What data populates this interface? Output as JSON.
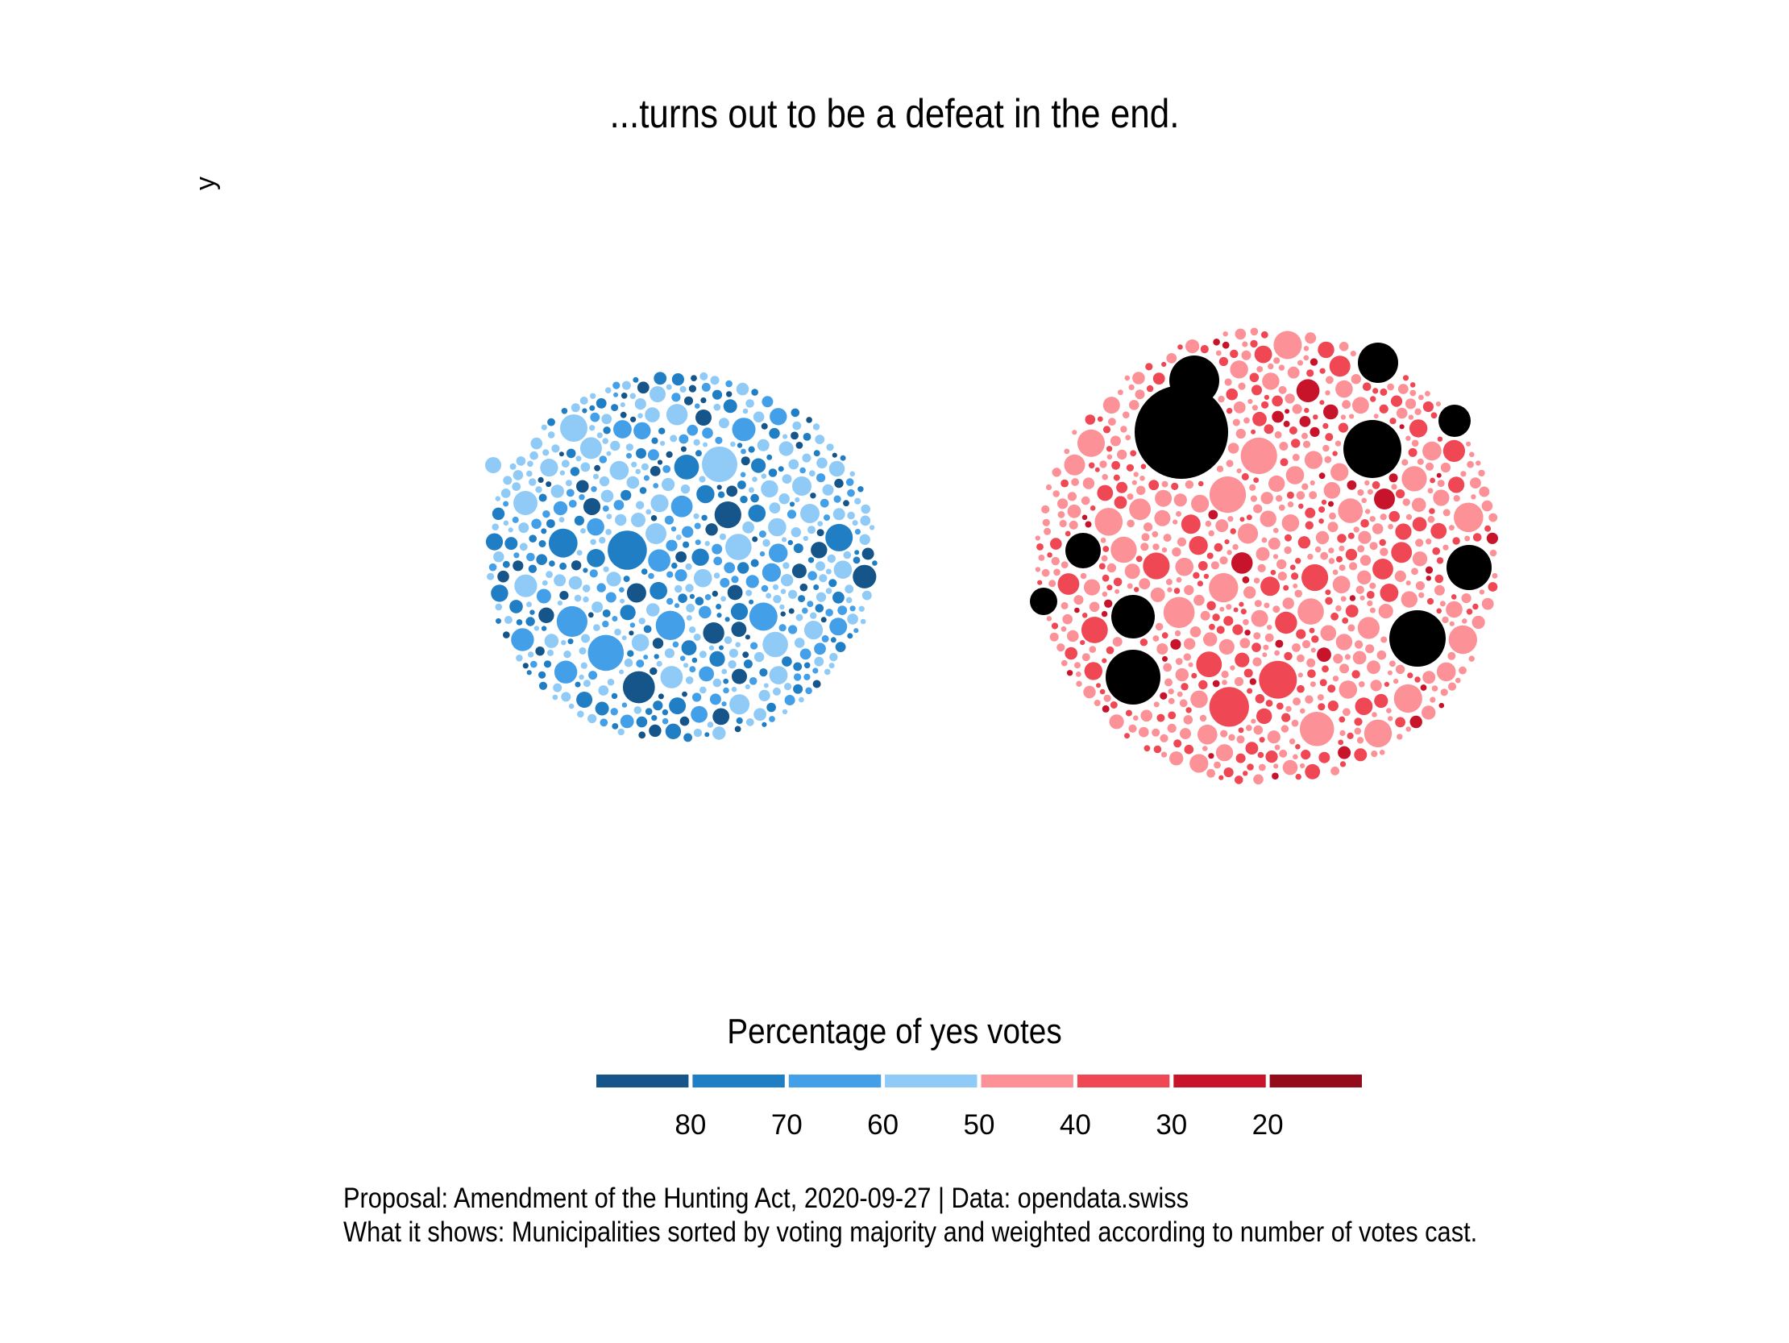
{
  "title": "...turns out to be a defeat in the end.",
  "y_axis_label": "y",
  "legend": {
    "title": "Percentage of yes votes",
    "bins": [
      {
        "color": "#15558a"
      },
      {
        "color": "#1f7ec4"
      },
      {
        "color": "#43a0e8"
      },
      {
        "color": "#90cbf7"
      },
      {
        "color": "#fc9197"
      },
      {
        "color": "#ef4753"
      },
      {
        "color": "#c8142a"
      },
      {
        "color": "#940c1b"
      }
    ],
    "tick_labels": [
      "80",
      "70",
      "60",
      "50",
      "40",
      "30",
      "20"
    ]
  },
  "caption": {
    "line1": "Proposal: Amendment of the Hunting Act, 2020-09-27 | Data: opendata.swiss",
    "line2": "What it shows: Municipalities sorted by voting majority and weighted according to number of votes cast."
  },
  "chart_data": {
    "type": "packed-bubble",
    "title": "...turns out to be a defeat in the end.",
    "ylabel": "y",
    "legend_title": "Percentage of yes votes",
    "legend_placement": "bottom",
    "color_scale_breaks": [
      80,
      70,
      60,
      50,
      40,
      30,
      20
    ],
    "groups": [
      {
        "majority": "yes",
        "color_range": [
          "#15558a",
          "#90cbf7"
        ]
      },
      {
        "majority": "no",
        "color_range": [
          "#fc9197",
          "#940c1b"
        ]
      }
    ],
    "grid": false
  }
}
